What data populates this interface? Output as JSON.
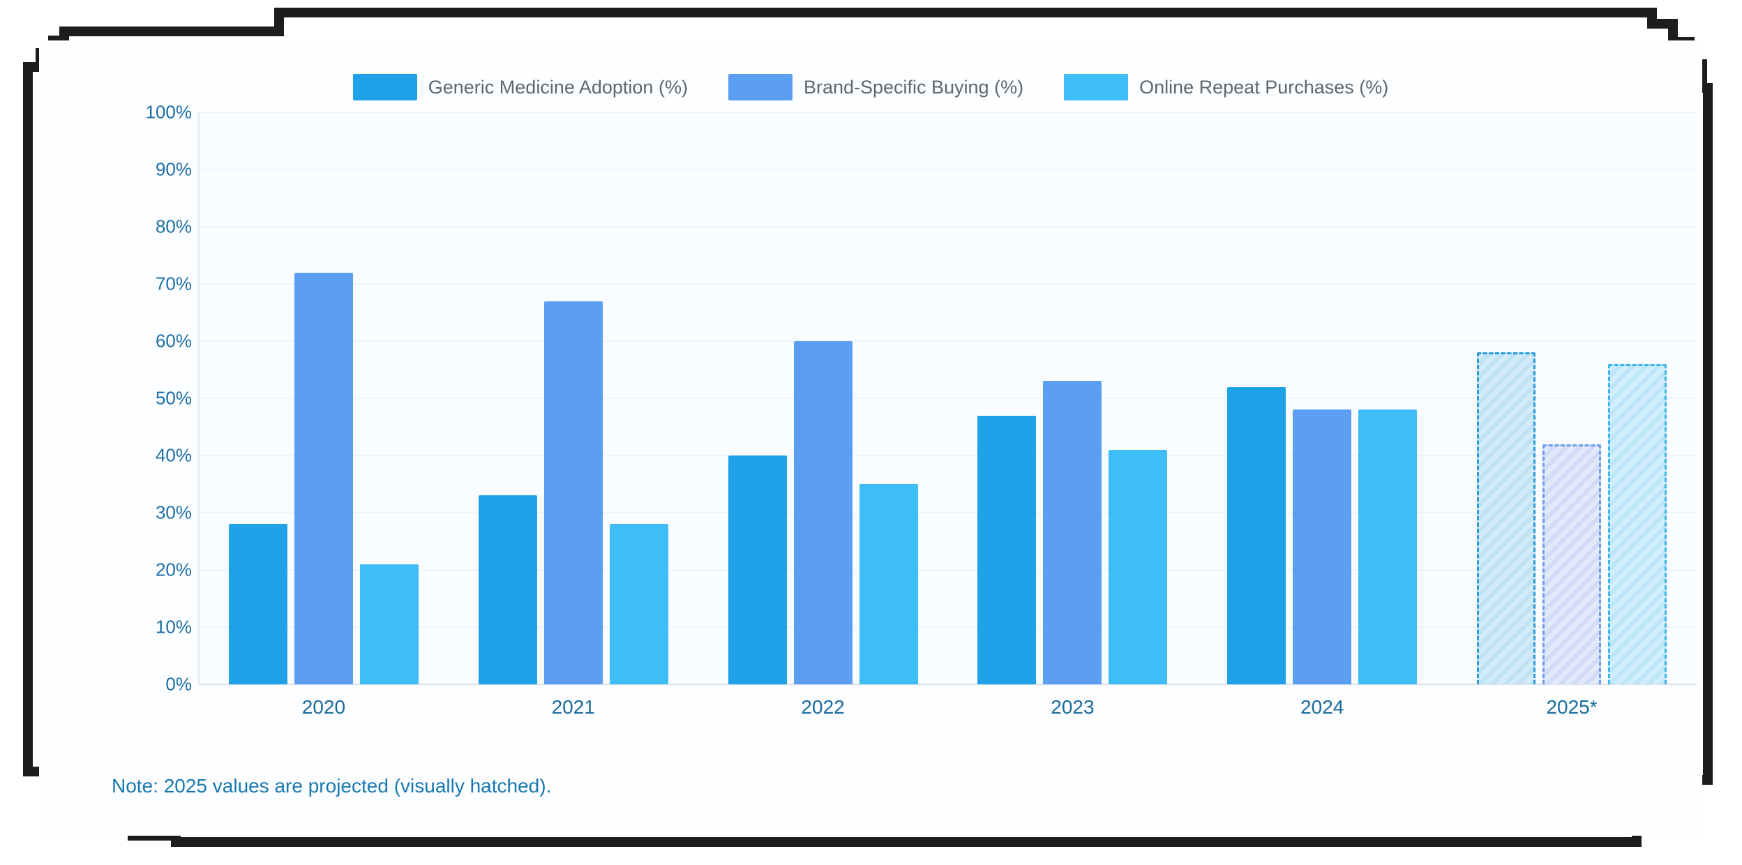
{
  "frame": {
    "color": "#1d1d1d"
  },
  "note": "Note: 2025 values are projected (visually hatched).",
  "axis": {
    "ytick_labels": [
      "0%",
      "10%",
      "20%",
      "30%",
      "40%",
      "50%",
      "60%",
      "70%",
      "80%",
      "90%",
      "100%"
    ],
    "label_color": "#1d6fa8",
    "xlabel_color": "#1a6c9e"
  },
  "chart_data": {
    "type": "bar",
    "title": "",
    "xlabel": "",
    "ylabel": "",
    "categories": [
      "2020",
      "2021",
      "2022",
      "2023",
      "2024",
      "2025*"
    ],
    "series": [
      {
        "name": "Generic Medicine Adoption (%)",
        "color": "#1fa2e8",
        "values": [
          28,
          33,
          40,
          47,
          52,
          58
        ]
      },
      {
        "name": "Brand-Specific Buying (%)",
        "color": "#5c9ff2",
        "values": [
          72,
          67,
          60,
          53,
          48,
          42
        ]
      },
      {
        "name": "Online Repeat Purchases (%)",
        "color": "#3fbdf6",
        "values": [
          21,
          28,
          35,
          41,
          48,
          56
        ]
      }
    ],
    "ylim": [
      0,
      100
    ],
    "ytick_step": 10,
    "grid": true,
    "legend_position": "top",
    "projected": {
      "category": "2025*",
      "category_index": 5,
      "note": "hatched bars with dashed outline",
      "styles": [
        {
          "fill": "#d3eaf8",
          "hatch": "#bfe2f5",
          "border": "#2b9bd8"
        },
        {
          "fill": "#e2e9fb",
          "hatch": "#d2dcf8",
          "border": "#6f9bed"
        },
        {
          "fill": "#d2edfc",
          "hatch": "#bde6fa",
          "border": "#3cb4ee"
        }
      ]
    }
  }
}
